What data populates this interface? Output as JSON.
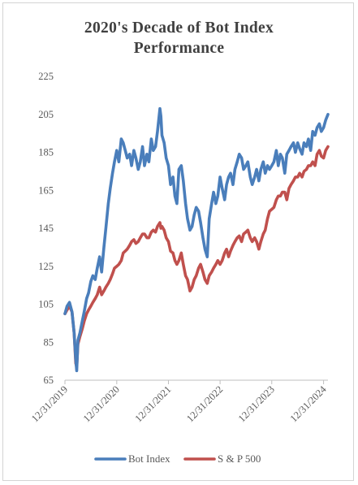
{
  "chart_data": {
    "type": "line",
    "title_lines": [
      "2020's Decade of Bot Index",
      "Performance"
    ],
    "xlabel": "",
    "ylabel": "",
    "ylim": [
      65,
      225
    ],
    "yticks": [
      65,
      85,
      105,
      125,
      145,
      165,
      185,
      205,
      225
    ],
    "xlim": [
      "2019-12-31",
      "2025-01-31"
    ],
    "xticks": [
      "12/31/2019",
      "12/31/2020",
      "12/31/2021",
      "12/31/2022",
      "12/31/2023",
      "12/31/2024"
    ],
    "grid": false,
    "legend_position": "bottom",
    "x": [
      "2019-12-31",
      "2020-01-15",
      "2020-02-01",
      "2020-02-19",
      "2020-03-05",
      "2020-03-16",
      "2020-03-23",
      "2020-04-01",
      "2020-04-15",
      "2020-05-01",
      "2020-05-15",
      "2020-06-01",
      "2020-06-15",
      "2020-07-01",
      "2020-07-15",
      "2020-08-01",
      "2020-08-15",
      "2020-09-01",
      "2020-09-15",
      "2020-10-01",
      "2020-10-15",
      "2020-11-01",
      "2020-11-15",
      "2020-12-01",
      "2020-12-15",
      "2020-12-31",
      "2021-01-15",
      "2021-02-01",
      "2021-02-15",
      "2021-03-01",
      "2021-03-15",
      "2021-04-01",
      "2021-04-15",
      "2021-05-01",
      "2021-05-15",
      "2021-06-01",
      "2021-06-15",
      "2021-07-01",
      "2021-07-15",
      "2021-08-01",
      "2021-08-15",
      "2021-09-01",
      "2021-09-15",
      "2021-10-01",
      "2021-10-15",
      "2021-11-01",
      "2021-11-08",
      "2021-11-15",
      "2021-12-01",
      "2021-12-15",
      "2021-12-31",
      "2022-01-15",
      "2022-02-01",
      "2022-02-15",
      "2022-03-01",
      "2022-03-15",
      "2022-04-01",
      "2022-04-15",
      "2022-05-01",
      "2022-05-15",
      "2022-06-01",
      "2022-06-16",
      "2022-07-01",
      "2022-07-15",
      "2022-08-01",
      "2022-08-15",
      "2022-09-01",
      "2022-09-15",
      "2022-10-01",
      "2022-10-15",
      "2022-11-01",
      "2022-11-15",
      "2022-12-01",
      "2022-12-15",
      "2022-12-31",
      "2023-01-15",
      "2023-02-01",
      "2023-02-15",
      "2023-03-01",
      "2023-03-15",
      "2023-04-01",
      "2023-04-15",
      "2023-05-01",
      "2023-05-15",
      "2023-06-01",
      "2023-06-15",
      "2023-07-01",
      "2023-07-15",
      "2023-08-01",
      "2023-08-15",
      "2023-09-01",
      "2023-09-15",
      "2023-10-01",
      "2023-10-15",
      "2023-11-01",
      "2023-11-15",
      "2023-12-01",
      "2023-12-15",
      "2023-12-31",
      "2024-01-15",
      "2024-02-01",
      "2024-02-15",
      "2024-03-01",
      "2024-03-15",
      "2024-04-01",
      "2024-04-15",
      "2024-05-01",
      "2024-05-15",
      "2024-06-01",
      "2024-06-15",
      "2024-07-01",
      "2024-07-15",
      "2024-08-01",
      "2024-08-15",
      "2024-09-01",
      "2024-09-15",
      "2024-10-01",
      "2024-10-15",
      "2024-11-01",
      "2024-11-15",
      "2024-12-01",
      "2024-12-15",
      "2024-12-31",
      "2025-01-15",
      "2025-01-31"
    ],
    "series": [
      {
        "name": "Bot Index",
        "color": "#4a7ebb",
        "values": [
          100,
          104,
          106,
          101,
          90,
          76,
          70,
          86,
          90,
          96,
          101,
          108,
          111,
          117,
          120,
          118,
          124,
          130,
          122,
          135,
          145,
          158,
          166,
          174,
          180,
          186,
          180,
          192,
          190,
          186,
          182,
          184,
          178,
          186,
          182,
          176,
          180,
          188,
          178,
          184,
          180,
          192,
          186,
          188,
          196,
          208,
          204,
          194,
          190,
          182,
          178,
          168,
          172,
          162,
          158,
          176,
          178,
          170,
          158,
          150,
          144,
          146,
          152,
          156,
          154,
          148,
          140,
          134,
          130,
          150,
          158,
          164,
          158,
          162,
          172,
          166,
          160,
          168,
          172,
          174,
          168,
          176,
          180,
          184,
          182,
          176,
          178,
          180,
          172,
          168,
          172,
          176,
          170,
          176,
          180,
          174,
          178,
          176,
          178,
          180,
          186,
          178,
          184,
          182,
          174,
          184,
          186,
          188,
          190,
          185,
          190,
          187,
          184,
          190,
          188,
          192,
          186,
          196,
          194,
          198,
          200,
          196,
          198,
          202,
          205
        ]
      },
      {
        "name": "S & P 500",
        "color": "#c0504d",
        "values": [
          100,
          102,
          104,
          101,
          90,
          74,
          72,
          84,
          88,
          92,
          96,
          100,
          102,
          104,
          106,
          108,
          110,
          114,
          110,
          112,
          114,
          116,
          118,
          121,
          124,
          125,
          126,
          128,
          132,
          133,
          134,
          136,
          138,
          139,
          137,
          138,
          140,
          142,
          142,
          140,
          140,
          143,
          144,
          143,
          146,
          148,
          145,
          146,
          144,
          140,
          138,
          133,
          132,
          128,
          126,
          128,
          132,
          126,
          120,
          118,
          112,
          114,
          118,
          120,
          124,
          126,
          122,
          118,
          116,
          120,
          122,
          124,
          126,
          128,
          126,
          128,
          132,
          134,
          130,
          133,
          136,
          138,
          140,
          141,
          138,
          142,
          143,
          144,
          140,
          138,
          140,
          138,
          134,
          138,
          142,
          144,
          150,
          154,
          155,
          156,
          160,
          162,
          162,
          164,
          164,
          160,
          166,
          168,
          170,
          172,
          172,
          174,
          172,
          175,
          176,
          178,
          178,
          180,
          178,
          184,
          186,
          183,
          182,
          186,
          188
        ]
      }
    ]
  }
}
